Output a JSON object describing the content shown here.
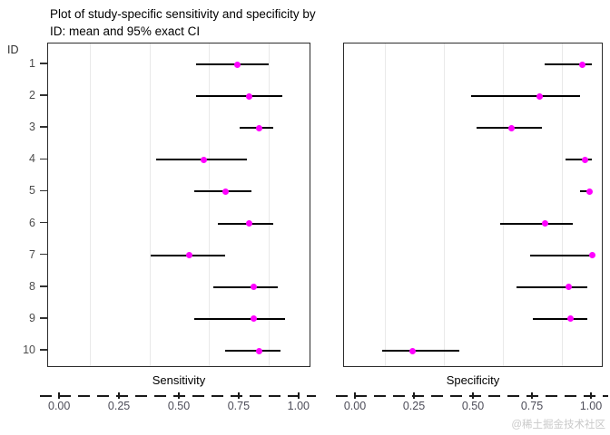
{
  "title": {
    "line1": "Plot of study-specific sensitivity and specificity by",
    "line2": "ID: mean and 95% exact CI"
  },
  "id_axis": {
    "label": "ID"
  },
  "watermark": "@稀土掘金技术社区",
  "colors": {
    "point": "#ff00ff",
    "ci_line": "#000000",
    "panel_border": "#2b2b2b",
    "gridline": "#e9e9e9",
    "axis_text": "#4d4d4d"
  },
  "chart_data": {
    "type": "scatter",
    "variant": "forest",
    "title": "Plot of study-specific sensitivity and specificity by ID: mean and 95% exact CI",
    "id_axis_label": "ID",
    "categories": [
      "1",
      "2",
      "3",
      "4",
      "5",
      "6",
      "7",
      "8",
      "9",
      "10"
    ],
    "xlim": [
      0,
      1
    ],
    "xticks": [
      0,
      0.25,
      0.5,
      0.75,
      1
    ],
    "xtick_labels": [
      "0.00",
      "0.25",
      "0.50",
      "0.75",
      "1.00"
    ],
    "minor_gridlines": [
      0.125,
      0.375,
      0.625,
      0.875
    ],
    "grid": "minor-vertical-only",
    "legend": "none",
    "panels": [
      {
        "label": "Sensitivity",
        "points": [
          {
            "id": "1",
            "mean": 0.74,
            "lower": 0.57,
            "upper": 0.87
          },
          {
            "id": "2",
            "mean": 0.79,
            "lower": 0.57,
            "upper": 0.93
          },
          {
            "id": "3",
            "mean": 0.83,
            "lower": 0.75,
            "upper": 0.89
          },
          {
            "id": "4",
            "mean": 0.6,
            "lower": 0.4,
            "upper": 0.78
          },
          {
            "id": "5",
            "mean": 0.69,
            "lower": 0.56,
            "upper": 0.8
          },
          {
            "id": "6",
            "mean": 0.79,
            "lower": 0.66,
            "upper": 0.89
          },
          {
            "id": "7",
            "mean": 0.54,
            "lower": 0.38,
            "upper": 0.69
          },
          {
            "id": "8",
            "mean": 0.81,
            "lower": 0.64,
            "upper": 0.91
          },
          {
            "id": "9",
            "mean": 0.81,
            "lower": 0.56,
            "upper": 0.94
          },
          {
            "id": "10",
            "mean": 0.83,
            "lower": 0.69,
            "upper": 0.92
          }
        ]
      },
      {
        "label": "Specificity",
        "points": [
          {
            "id": "1",
            "mean": 0.96,
            "lower": 0.8,
            "upper": 1.0
          },
          {
            "id": "2",
            "mean": 0.78,
            "lower": 0.49,
            "upper": 0.95
          },
          {
            "id": "3",
            "mean": 0.66,
            "lower": 0.51,
            "upper": 0.79
          },
          {
            "id": "4",
            "mean": 0.97,
            "lower": 0.89,
            "upper": 1.0
          },
          {
            "id": "5",
            "mean": 0.99,
            "lower": 0.95,
            "upper": 1.0
          },
          {
            "id": "6",
            "mean": 0.8,
            "lower": 0.61,
            "upper": 0.92
          },
          {
            "id": "7",
            "mean": 1.0,
            "lower": 0.74,
            "upper": 1.0
          },
          {
            "id": "8",
            "mean": 0.9,
            "lower": 0.68,
            "upper": 0.98
          },
          {
            "id": "9",
            "mean": 0.91,
            "lower": 0.75,
            "upper": 0.98
          },
          {
            "id": "10",
            "mean": 0.24,
            "lower": 0.11,
            "upper": 0.44
          }
        ]
      }
    ]
  }
}
